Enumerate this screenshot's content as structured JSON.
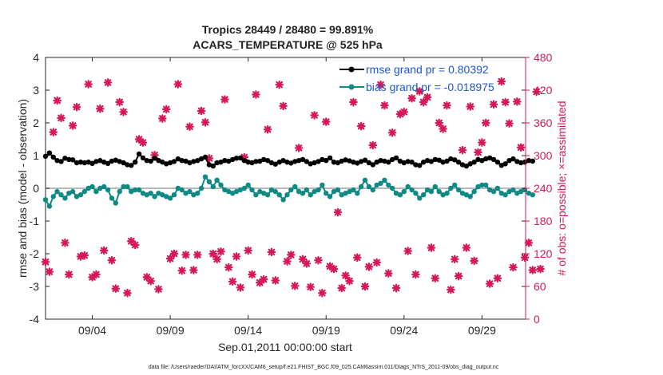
{
  "chart_data": {
    "type": "line",
    "title_line1": "Tropics 28449 / 28480 = 99.891%",
    "title_line2": "ACARS_TEMPERATURE @ 525 hPa",
    "xlabel": "Sep.01,2011 00:00:00 start",
    "ylabel": "rmse and bias (model - observation)",
    "ylabel_right": "# of obs: o=possible; ×=assimilated",
    "ylim": [
      -4,
      4
    ],
    "ylim_right": [
      0,
      480
    ],
    "xlim_days": [
      0,
      30.8
    ],
    "x_ticks": [
      {
        "day": 3,
        "label": "09/04"
      },
      {
        "day": 8,
        "label": "09/09"
      },
      {
        "day": 13,
        "label": "09/14"
      },
      {
        "day": 18,
        "label": "09/19"
      },
      {
        "day": 23,
        "label": "09/24"
      },
      {
        "day": 28,
        "label": "09/29"
      }
    ],
    "y_ticks": [
      "-4",
      "-3",
      "-2",
      "-1",
      "0",
      "1",
      "2",
      "3",
      "4"
    ],
    "y_ticks_right": [
      "0",
      "60",
      "120",
      "180",
      "240",
      "300",
      "360",
      "420",
      "480"
    ],
    "grid": false,
    "legend_position": "top-right",
    "colors": {
      "rmse": "#000000",
      "bias": "#0e8a84",
      "obs": "#d6185a",
      "zero_line": "#b8b8b8"
    },
    "series": [
      {
        "name": "rmse grand pr = 0.80392",
        "x_step_days": 0.25,
        "values": [
          0.98,
          1.08,
          0.95,
          0.85,
          0.82,
          0.92,
          0.88,
          0.87,
          0.78,
          0.8,
          0.78,
          0.8,
          0.76,
          0.82,
          0.85,
          0.8,
          0.76,
          0.83,
          0.86,
          0.82,
          0.78,
          0.72,
          0.7,
          0.8,
          1.05,
          0.93,
          0.85,
          0.83,
          0.92,
          0.85,
          0.8,
          0.75,
          0.78,
          0.82,
          0.9,
          0.85,
          0.83,
          0.78,
          0.82,
          0.85,
          0.9,
          0.95,
          0.72,
          0.68,
          0.78,
          0.8,
          0.85,
          0.83,
          0.88,
          0.92,
          0.93,
          0.85,
          0.8,
          0.78,
          0.82,
          0.83,
          0.88,
          0.85,
          0.78,
          0.74,
          0.8,
          0.85,
          0.8,
          0.77,
          0.82,
          0.85,
          0.88,
          0.82,
          0.75,
          0.78,
          0.82,
          0.88,
          0.85,
          0.93,
          0.8,
          0.78,
          0.83,
          0.87,
          0.84,
          0.8,
          0.77,
          0.82,
          0.86,
          0.78,
          0.72,
          0.8,
          0.85,
          0.83,
          0.8,
          0.88,
          0.93,
          0.83,
          0.78,
          0.82,
          0.8,
          0.72,
          0.7,
          0.8,
          0.85,
          0.82,
          0.88,
          0.86,
          0.8,
          0.83,
          0.9,
          0.87,
          0.8,
          0.72,
          0.68,
          0.75,
          0.8,
          0.88,
          0.85,
          0.9,
          0.93,
          0.88,
          0.8,
          0.7,
          0.75,
          0.85,
          0.9,
          0.82,
          0.78,
          0.8,
          0.85,
          0.83
        ]
      },
      {
        "name": "bias grand pr = -0.018975",
        "x_step_days": 0.25,
        "values": [
          -0.35,
          -0.55,
          -0.25,
          -0.1,
          -0.2,
          -0.3,
          -0.15,
          -0.1,
          -0.25,
          -0.2,
          -0.1,
          0.0,
          0.05,
          -0.1,
          0.0,
          0.05,
          -0.05,
          -0.3,
          -0.45,
          -0.1,
          0.05,
          0.05,
          -0.1,
          -0.05,
          -0.05,
          -0.15,
          -0.2,
          -0.15,
          -0.25,
          -0.15,
          -0.2,
          -0.25,
          -0.3,
          -0.2,
          0.0,
          -0.05,
          -0.15,
          -0.1,
          -0.2,
          -0.15,
          0.0,
          0.35,
          0.2,
          0.05,
          0.25,
          0.1,
          -0.05,
          -0.1,
          -0.15,
          -0.1,
          -0.05,
          0.0,
          0.1,
          -0.05,
          -0.2,
          -0.1,
          -0.15,
          -0.2,
          -0.05,
          -0.1,
          -0.2,
          -0.35,
          -0.2,
          -0.05,
          0.05,
          -0.1,
          -0.15,
          -0.05,
          -0.2,
          -0.1,
          -0.05,
          0.1,
          -0.15,
          -0.25,
          -0.1,
          -0.05,
          -0.2,
          -0.15,
          -0.1,
          -0.05,
          -0.15,
          0.05,
          0.25,
          0.05,
          -0.05,
          0.1,
          0.15,
          0.25,
          0.1,
          0.0,
          -0.15,
          -0.2,
          -0.1,
          0.05,
          -0.05,
          -0.15,
          -0.3,
          -0.2,
          -0.05,
          -0.1,
          0.05,
          -0.1,
          -0.2,
          -0.15,
          0.0,
          0.1,
          -0.05,
          -0.15,
          -0.2,
          -0.25,
          -0.1,
          0.05,
          0.1,
          0.1,
          -0.05,
          -0.1,
          0.0,
          -0.15,
          -0.2,
          -0.1,
          -0.05,
          -0.15,
          -0.1,
          -0.05,
          -0.15,
          -0.2
        ]
      }
    ],
    "obs_counts": {
      "name": "# of obs",
      "x_step_days": 0.25,
      "values": [
        105,
        87,
        343,
        401,
        369,
        140,
        82,
        355,
        389,
        115,
        117,
        431,
        77,
        82,
        386,
        126,
        434,
        108,
        56,
        398,
        380,
        48,
        143,
        136,
        330,
        324,
        77,
        70,
        301,
        55,
        368,
        385,
        111,
        120,
        431,
        89,
        118,
        353,
        90,
        118,
        382,
        361,
        295,
        120,
        110,
        124,
        403,
        95,
        69,
        115,
        58,
        297,
        126,
        82,
        412,
        67,
        73,
        348,
        123,
        71,
        430,
        391,
        106,
        118,
        61,
        314,
        110,
        102,
        59,
        374,
        108,
        48,
        362,
        97,
        92,
        196,
        57,
        80,
        70,
        398,
        113,
        354,
        60,
        96,
        319,
        104,
        430,
        392,
        84,
        342,
        57,
        376,
        380,
        125,
        405,
        82,
        418,
        398,
        407,
        131,
        75,
        360,
        349,
        392,
        54,
        110,
        79,
        310,
        131,
        390,
        107,
        306,
        324,
        360,
        65,
        394,
        75,
        436,
        398,
        359,
        95,
        399,
        315,
        113,
        140,
        90,
        417,
        92
      ]
    }
  },
  "footnote": "data file: /Users/raeder/DAI/ATM_forcXX/CAM6_setup/f.e21.FHIST_BGC.f09_025.CAM6assim.011/Diags_NTrS_2011-09/obs_diag_output.nc"
}
